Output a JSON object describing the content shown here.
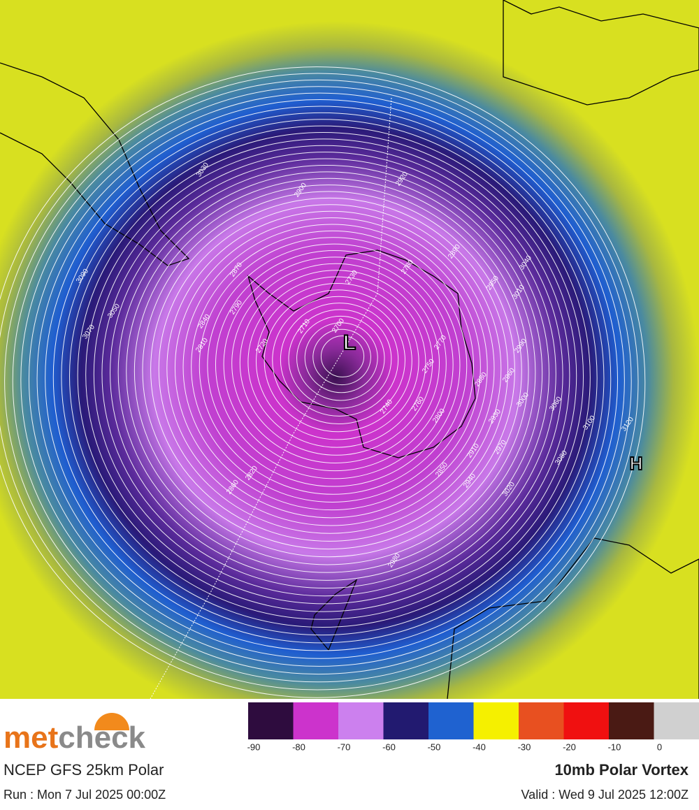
{
  "map": {
    "low_label": "L",
    "high_label": "H",
    "contour_labels": [
      "3030",
      "2900",
      "2920",
      "2890",
      "3040",
      "3010",
      "2950",
      "2990",
      "2960",
      "3000",
      "3060",
      "3100",
      "3120",
      "3080",
      "3020",
      "2970",
      "2930",
      "2880",
      "2910",
      "2940",
      "2850",
      "2800",
      "2760",
      "2740",
      "2750",
      "2770",
      "2730",
      "2710",
      "2700",
      "2720",
      "2790",
      "2870",
      "2840",
      "2810",
      "3050",
      "3090",
      "3070",
      "2820",
      "2860",
      "2980",
      "2780"
    ]
  },
  "colorbar": {
    "colors": [
      "#2e0c3e",
      "#cc33cc",
      "#cc80ee",
      "#221a70",
      "#1f62d0",
      "#f5f000",
      "#e85020",
      "#f01010",
      "#4a1a14",
      "#d0d0d0"
    ],
    "ticks": [
      -90,
      -80,
      -70,
      -60,
      -50,
      -40,
      -30,
      -20,
      -10,
      0
    ]
  },
  "footer": {
    "logo_met": "met",
    "logo_check": "check",
    "model": "NCEP GFS 25km Polar",
    "run": "Run : Mon 7 Jul 2025 00:00Z",
    "title": "10mb Polar Vortex",
    "valid": "Valid : Wed 9 Jul 2025 12:00Z"
  }
}
